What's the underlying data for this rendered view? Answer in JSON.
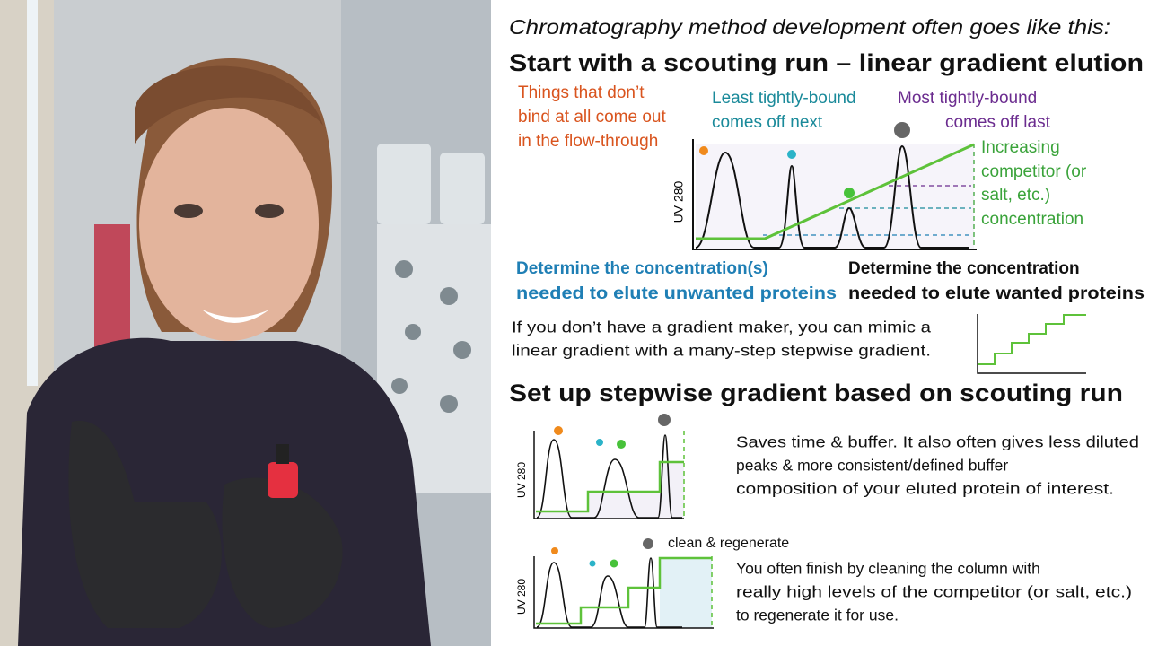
{
  "intro": "Chromatography method development often goes like this:",
  "scouting": {
    "title": "Start with a scouting run – linear gradient elution",
    "flow_through": [
      "Things that don’t",
      "bind at all come out",
      "in the flow-through"
    ],
    "least_bound": [
      "Least tightly-bound",
      "comes off next"
    ],
    "most_bound": [
      "Most tightly-bound",
      "comes off last"
    ],
    "competitor": [
      "Increasing",
      "competitor (or",
      "salt, etc.)",
      "concentration"
    ],
    "axis_label": "UV 280",
    "unwanted": [
      "Determine the concentration(s)",
      "needed to elute unwanted proteins"
    ],
    "wanted": [
      "Determine the concentration",
      "needed to elute wanted proteins"
    ],
    "mimic": [
      "If you don’t have a gradient maker, you can mimic a",
      "linear gradient with a many-step stepwise gradient."
    ]
  },
  "stepwise": {
    "title": "Set up stepwise gradient based on scouting run",
    "axis_label": "UV 280",
    "benefit": [
      "Saves time & buffer. It also often gives less diluted",
      "peaks & more consistent/defined buffer",
      "composition of your eluted protein of interest."
    ],
    "clean_label": "clean & regenerate",
    "clean_axis_label": "UV 280",
    "clean": [
      "You often finish by cleaning the column with",
      "really high levels of the competitor (or salt, etc.)",
      "to regenerate it for use."
    ]
  }
}
